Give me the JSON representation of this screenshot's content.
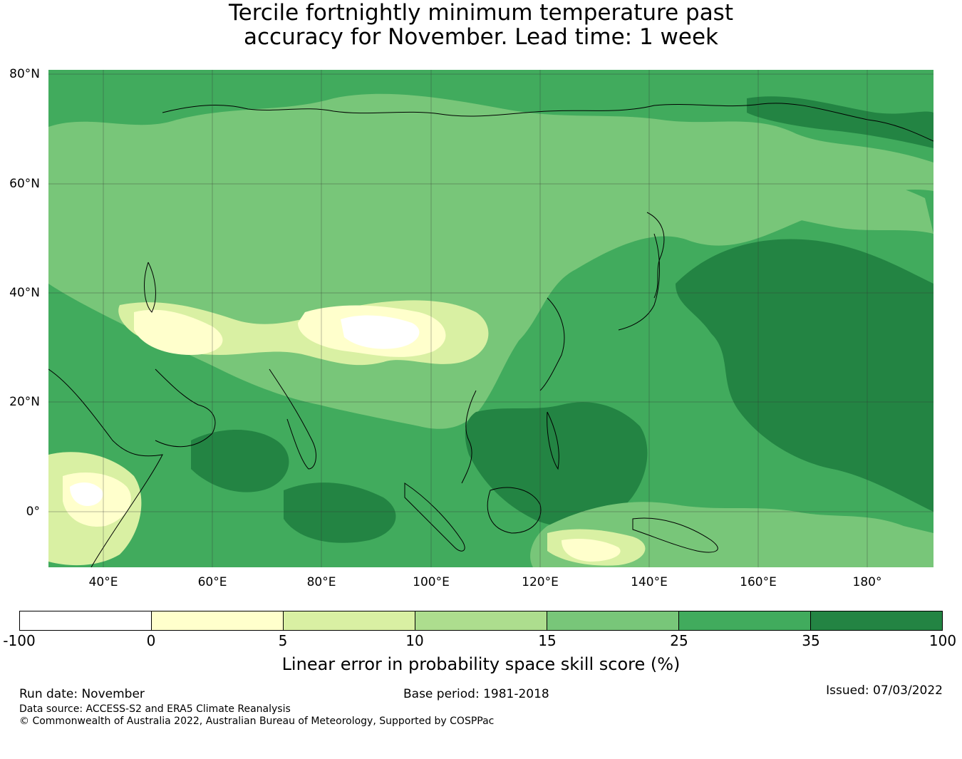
{
  "title_line1": "Tercile fortnightly minimum temperature past",
  "title_line2": "accuracy for November. Lead time: 1 week",
  "map": {
    "lat_ticks": [
      "80°N",
      "60°N",
      "40°N",
      "20°N",
      "0°"
    ],
    "lon_ticks": [
      "40°E",
      "60°E",
      "80°E",
      "100°E",
      "120°E",
      "140°E",
      "160°E",
      "180°"
    ]
  },
  "colorbar": {
    "ticks": [
      "-100",
      "0",
      "5",
      "10",
      "15",
      "25",
      "35",
      "100"
    ],
    "colors": [
      "#ffffff",
      "#ffffcc",
      "#d9f0a3",
      "#addd8e",
      "#78c679",
      "#41ab5d",
      "#238443"
    ],
    "label": "Linear error in probability space skill score (%)"
  },
  "footer": {
    "run_date": "Run date: November",
    "base_period": "Base period: 1981-2018",
    "issued": "Issued: 07/03/2022",
    "data_source": "Data source: ACCESS-S2 and ERA5 Climate Reanalysis",
    "copyright": "© Commonwealth of Australia 2022, Australian Bureau of Meteorology, Supported by COSPPac"
  }
}
